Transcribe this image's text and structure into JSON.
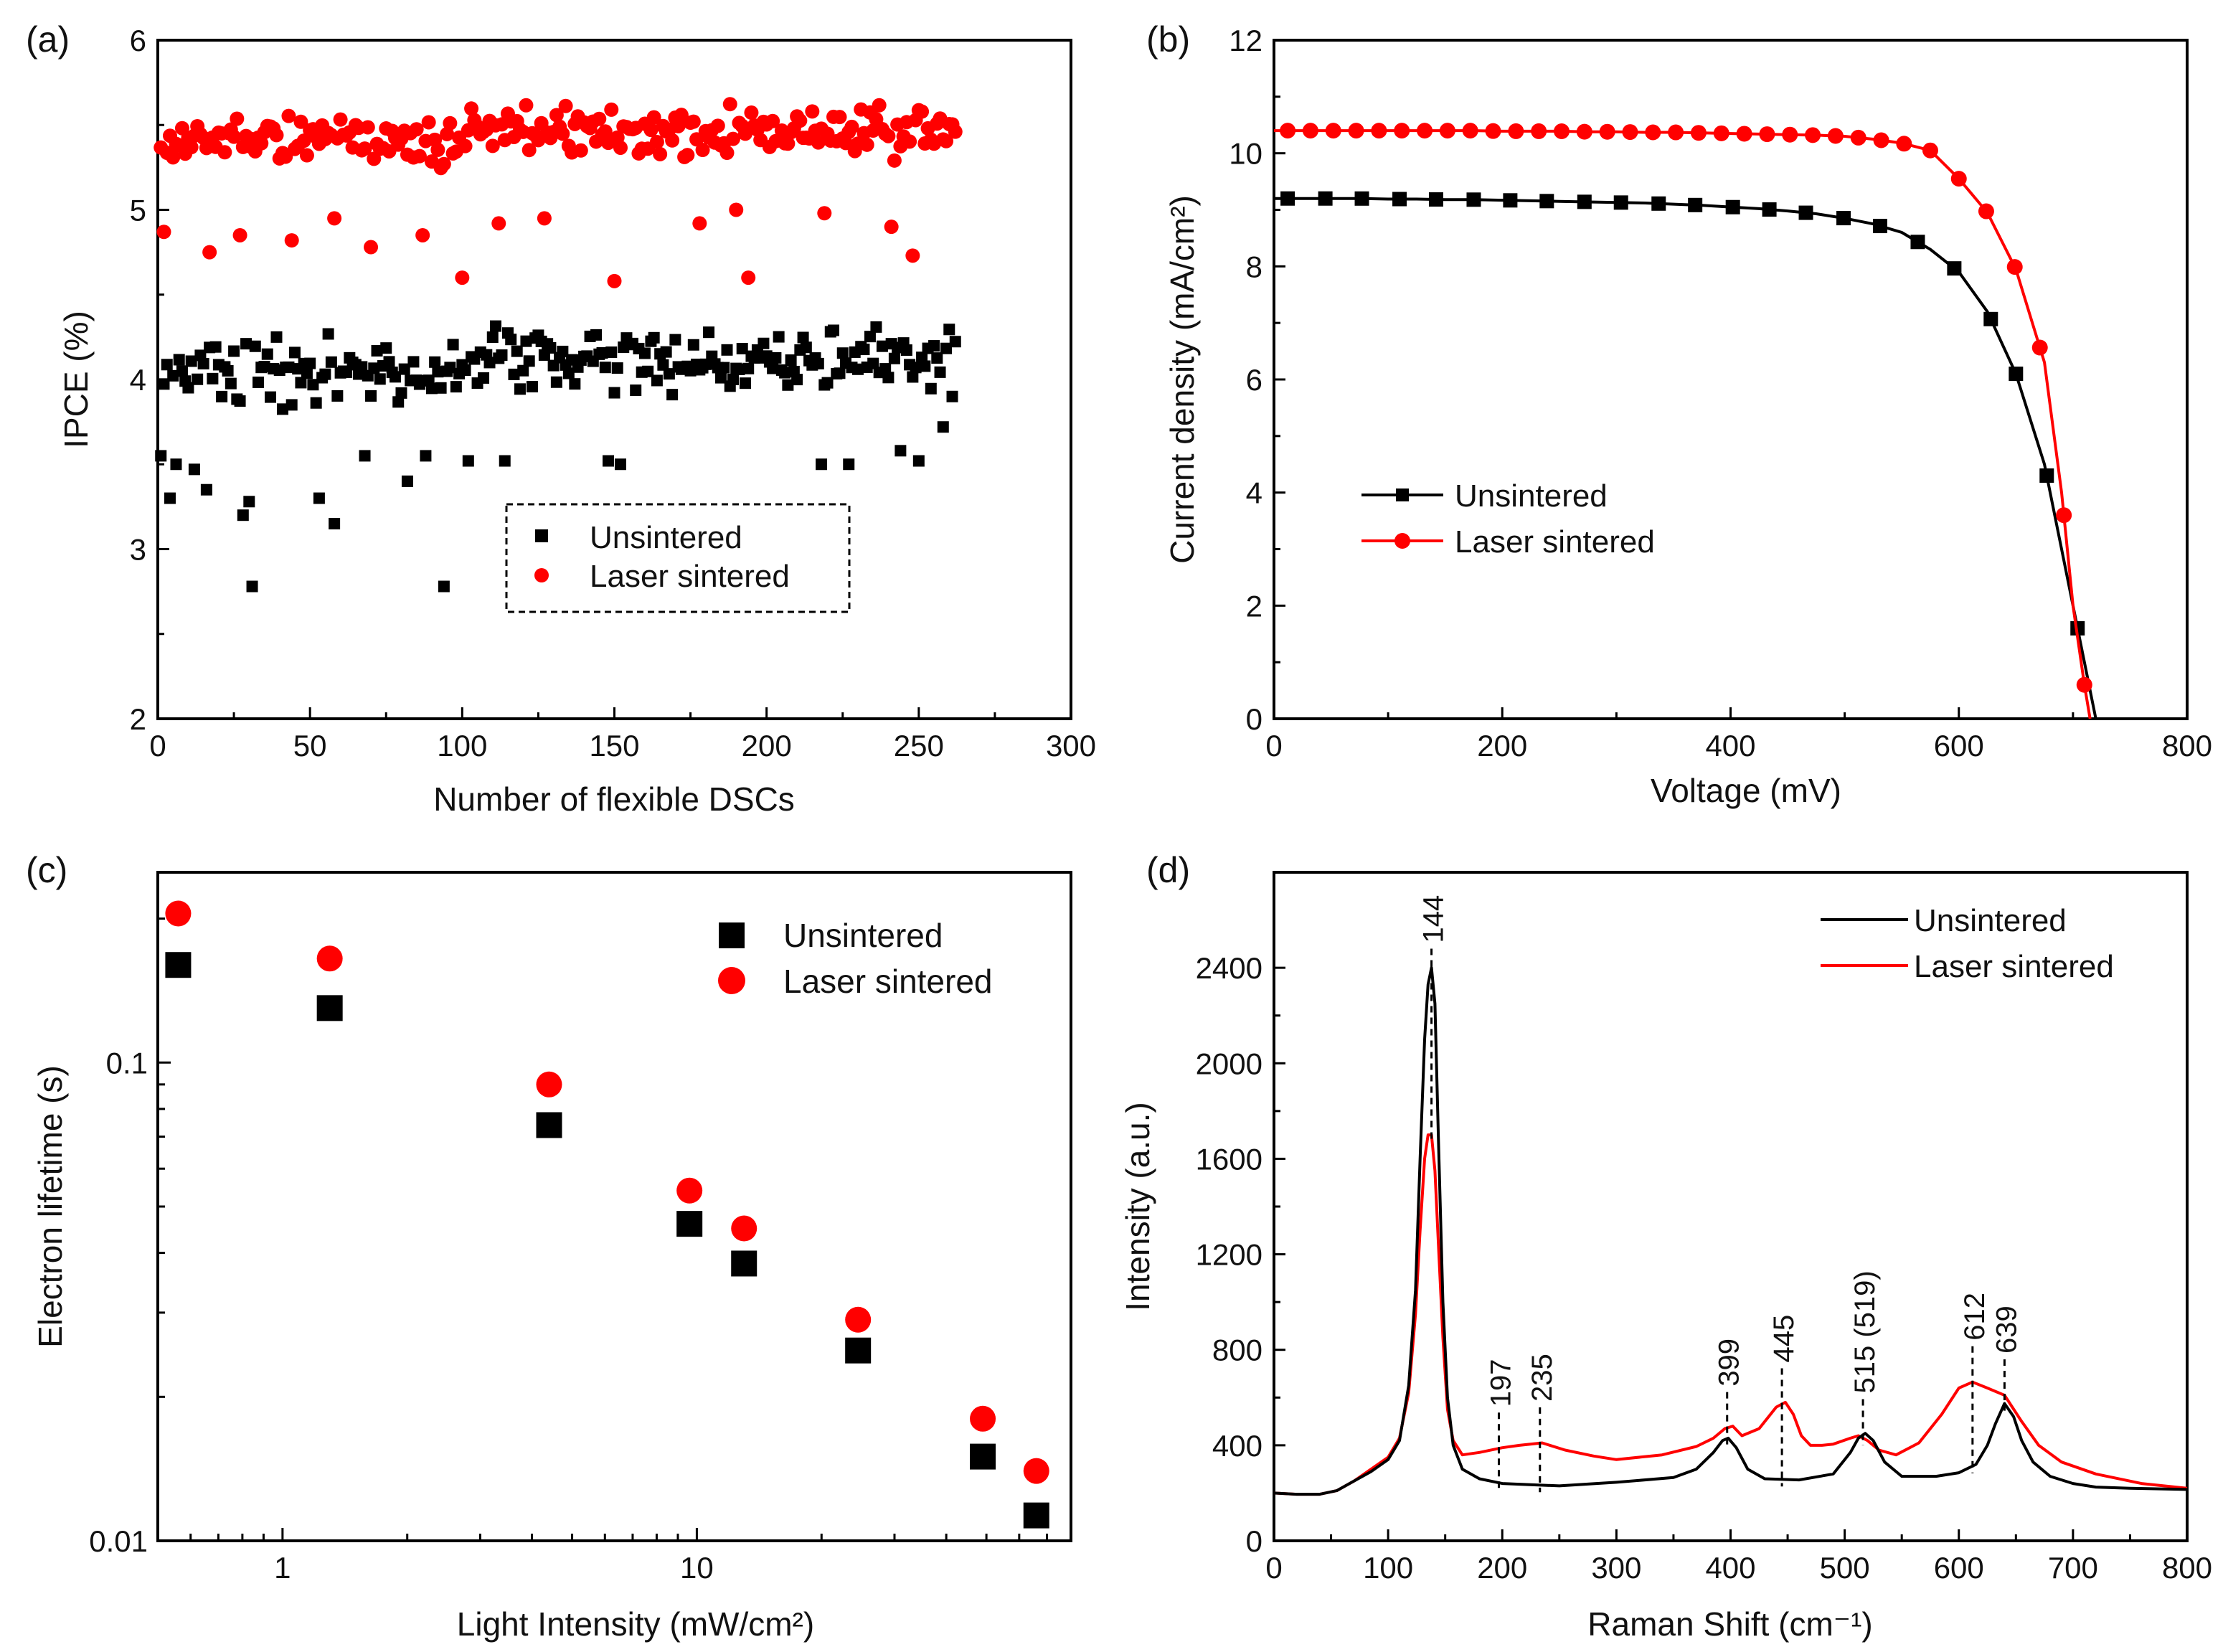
{
  "colors": {
    "black": "#000000",
    "red": "#ff0000"
  },
  "panels": {
    "a": {
      "letter": "(a)"
    },
    "b": {
      "letter": "(b)"
    },
    "c": {
      "letter": "(c)"
    },
    "d": {
      "letter": "(d)"
    }
  },
  "chart_data": [
    {
      "id": "a",
      "type": "scatter",
      "xlabel": "Number of flexible DSCs",
      "ylabel": "IPCE (%)",
      "xlim": [
        0,
        300
      ],
      "ylim": [
        2,
        6
      ],
      "xticks": [
        0,
        50,
        100,
        150,
        200,
        250,
        300
      ],
      "yticks": [
        2,
        3,
        4,
        5,
        6
      ],
      "legend": [
        "Unsintered",
        "Laser sintered"
      ],
      "legend_position": "bottom-center (dashed box)",
      "n_points": 262,
      "series": [
        {
          "name": "Unsintered",
          "marker": "square",
          "center": 4.05,
          "spread": 0.26,
          "outliers": [
            [
              1,
              3.55
            ],
            [
              4,
              3.3
            ],
            [
              6,
              3.5
            ],
            [
              12,
              3.47
            ],
            [
              16,
              3.35
            ],
            [
              28,
              3.2
            ],
            [
              30,
              3.28
            ],
            [
              31,
              2.78
            ],
            [
              53,
              3.3
            ],
            [
              58,
              3.15
            ],
            [
              68,
              3.55
            ],
            [
              82,
              3.4
            ],
            [
              88,
              3.55
            ],
            [
              94,
              2.78
            ],
            [
              102,
              3.52
            ],
            [
              114,
              3.52
            ],
            [
              148,
              3.52
            ],
            [
              152,
              3.5
            ],
            [
              218,
              3.5
            ],
            [
              227,
              3.5
            ],
            [
              244,
              3.58
            ],
            [
              250,
              3.52
            ],
            [
              258,
              3.72
            ]
          ]
        },
        {
          "name": "Laser sintered",
          "marker": "circle",
          "center": 5.4,
          "spread": 0.2,
          "outliers": [
            [
              2,
              4.87
            ],
            [
              17,
              4.75
            ],
            [
              27,
              4.85
            ],
            [
              44,
              4.82
            ],
            [
              58,
              4.95
            ],
            [
              70,
              4.78
            ],
            [
              87,
              4.85
            ],
            [
              100,
              4.6
            ],
            [
              112,
              4.92
            ],
            [
              127,
              4.95
            ],
            [
              150,
              4.58
            ],
            [
              178,
              4.92
            ],
            [
              190,
              5.0
            ],
            [
              194,
              4.6
            ],
            [
              219,
              4.98
            ],
            [
              241,
              4.9
            ],
            [
              248,
              4.73
            ]
          ]
        }
      ]
    },
    {
      "id": "b",
      "type": "line",
      "xlabel": "Voltage (mV)",
      "ylabel": "Current density (mA/cm²)",
      "xlim": [
        0,
        800
      ],
      "ylim": [
        0,
        12
      ],
      "xticks": [
        0,
        200,
        400,
        600,
        800
      ],
      "yticks": [
        0,
        2,
        4,
        6,
        8,
        10,
        12
      ],
      "legend": [
        "Unsintered",
        "Laser sintered"
      ],
      "legend_position": "middle-left",
      "series": [
        {
          "name": "Unsintered",
          "marker": "square",
          "x": [
            0,
            25,
            50,
            75,
            100,
            125,
            150,
            175,
            200,
            225,
            250,
            275,
            300,
            325,
            350,
            375,
            400,
            425,
            450,
            475,
            500,
            525,
            550,
            575,
            600,
            625,
            650,
            675,
            700,
            710,
            720
          ],
          "y": [
            9.2,
            9.2,
            9.2,
            9.2,
            9.19,
            9.19,
            9.18,
            9.18,
            9.17,
            9.16,
            9.15,
            9.14,
            9.13,
            9.12,
            9.1,
            9.08,
            9.05,
            9.02,
            8.98,
            8.93,
            8.85,
            8.75,
            8.6,
            8.3,
            7.9,
            7.2,
            6.1,
            4.5,
            2.0,
            1.0,
            0.0
          ],
          "marker_x": [
            12,
            45,
            77,
            110,
            142,
            175,
            207,
            239,
            272,
            304,
            337,
            369,
            402,
            434,
            466,
            499,
            531,
            564,
            596,
            628,
            650,
            677,
            704
          ]
        },
        {
          "name": "Laser sintered",
          "marker": "circle",
          "x": [
            0,
            25,
            50,
            75,
            100,
            125,
            150,
            175,
            200,
            225,
            250,
            275,
            300,
            325,
            350,
            375,
            400,
            425,
            450,
            475,
            500,
            525,
            550,
            575,
            600,
            625,
            650,
            675,
            690,
            700,
            710,
            715
          ],
          "y": [
            10.4,
            10.4,
            10.4,
            10.4,
            10.4,
            10.4,
            10.4,
            10.4,
            10.39,
            10.39,
            10.39,
            10.38,
            10.38,
            10.37,
            10.37,
            10.36,
            10.35,
            10.34,
            10.33,
            10.32,
            10.3,
            10.25,
            10.18,
            10.05,
            9.55,
            8.95,
            7.95,
            6.3,
            4.0,
            2.0,
            0.6,
            0.0
          ],
          "marker_x": [
            12,
            32,
            52,
            72,
            92,
            112,
            132,
            152,
            172,
            192,
            212,
            232,
            252,
            272,
            292,
            312,
            332,
            352,
            372,
            392,
            412,
            432,
            452,
            472,
            492,
            512,
            532,
            552,
            575,
            600,
            624,
            649,
            671,
            692,
            710
          ]
        }
      ]
    },
    {
      "id": "c",
      "type": "scatter",
      "xscale": "log",
      "yscale": "log",
      "xlabel": "Light Intensity (mW/cm²)",
      "ylabel": "Electron lifetime (s)",
      "xlim": [
        0.5,
        80
      ],
      "ylim": [
        0.01,
        0.25
      ],
      "xticks": [
        1,
        10
      ],
      "yticks": [
        0.01,
        0.1
      ],
      "ytick_labels": [
        "0.01",
        "0.1"
      ],
      "legend": [
        "Unsintered",
        "Laser sintered"
      ],
      "legend_position": "top-right",
      "series": [
        {
          "name": "Unsintered",
          "marker": "square",
          "x": [
            0.56,
            1.3,
            4.4,
            9.6,
            13,
            24.5,
            49,
            66
          ],
          "y": [
            0.16,
            0.13,
            0.074,
            0.046,
            0.038,
            0.025,
            0.015,
            0.0113
          ]
        },
        {
          "name": "Laser sintered",
          "marker": "circle",
          "x": [
            0.56,
            1.3,
            4.4,
            9.6,
            13,
            24.5,
            49,
            66
          ],
          "y": [
            0.205,
            0.165,
            0.09,
            0.054,
            0.045,
            0.029,
            0.018,
            0.014
          ]
        }
      ]
    },
    {
      "id": "d",
      "type": "line",
      "xlabel": "Raman Shift (cm⁻¹)",
      "ylabel": "Intensity (a.u.)",
      "xlim": [
        0,
        800
      ],
      "ylim": [
        0,
        2800
      ],
      "xticks": [
        0,
        100,
        200,
        300,
        400,
        500,
        600,
        700,
        800
      ],
      "yticks": [
        0,
        400,
        800,
        1200,
        1600,
        2000,
        2400
      ],
      "legend": [
        "Unsintered",
        "Laser sintered"
      ],
      "legend_position": "top-right",
      "annotations": [
        {
          "label": "144",
          "x": 138
        },
        {
          "label": "197",
          "x": 197
        },
        {
          "label": "235",
          "x": 233
        },
        {
          "label": "399",
          "x": 397
        },
        {
          "label": "445",
          "x": 445
        },
        {
          "label": "515 (519)",
          "x": 516
        },
        {
          "label": "612",
          "x": 612
        },
        {
          "label": "639",
          "x": 640
        }
      ],
      "series": [
        {
          "name": "Unsintered",
          "x": [
            0,
            20,
            40,
            55,
            70,
            85,
            100,
            110,
            118,
            124,
            128,
            132,
            135,
            138,
            141,
            144,
            148,
            152,
            157,
            165,
            180,
            200,
            250,
            300,
            350,
            370,
            385,
            393,
            398,
            405,
            415,
            430,
            460,
            490,
            505,
            512,
            518,
            525,
            535,
            550,
            580,
            600,
            615,
            625,
            632,
            640,
            648,
            655,
            665,
            680,
            700,
            720,
            750,
            800
          ],
          "y": [
            200,
            195,
            195,
            210,
            250,
            290,
            340,
            420,
            650,
            1050,
            1600,
            2100,
            2330,
            2400,
            2250,
            1700,
            1000,
            600,
            400,
            300,
            260,
            240,
            230,
            245,
            265,
            300,
            370,
            420,
            430,
            390,
            300,
            260,
            255,
            280,
            370,
            430,
            450,
            420,
            330,
            270,
            270,
            285,
            320,
            400,
            490,
            575,
            520,
            420,
            330,
            270,
            240,
            225,
            220,
            215
          ]
        },
        {
          "name": "Laser sintered",
          "x": [
            0,
            20,
            40,
            55,
            70,
            85,
            100,
            110,
            118,
            124,
            128,
            132,
            135,
            138,
            141,
            144,
            148,
            152,
            157,
            165,
            180,
            200,
            215,
            235,
            255,
            280,
            300,
            340,
            370,
            385,
            395,
            402,
            410,
            425,
            440,
            448,
            455,
            462,
            470,
            480,
            490,
            505,
            512,
            520,
            530,
            545,
            565,
            585,
            600,
            612,
            625,
            640,
            655,
            670,
            690,
            720,
            760,
            800
          ],
          "y": [
            200,
            195,
            195,
            210,
            250,
            300,
            350,
            430,
            620,
            950,
            1300,
            1600,
            1700,
            1700,
            1550,
            1250,
            850,
            550,
            420,
            360,
            370,
            390,
            400,
            410,
            380,
            355,
            340,
            360,
            395,
            430,
            470,
            480,
            440,
            470,
            560,
            580,
            530,
            440,
            400,
            400,
            405,
            430,
            440,
            420,
            380,
            360,
            410,
            530,
            640,
            665,
            640,
            610,
            500,
            400,
            330,
            280,
            240,
            220
          ]
        }
      ]
    }
  ]
}
